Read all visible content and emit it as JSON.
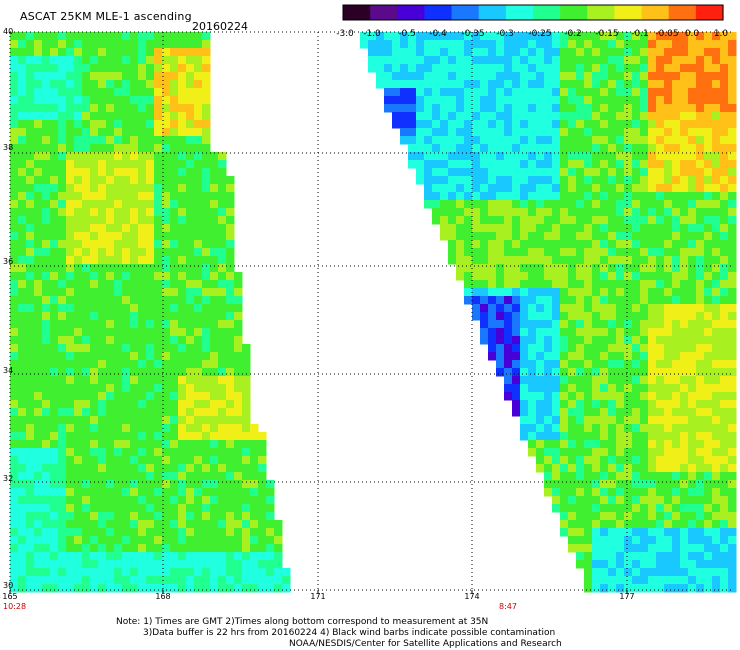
{
  "header": {
    "title": "ASCAT 25KM MLE-1 ascending",
    "date": "20160224"
  },
  "colorbar": {
    "labels": [
      "-3.0",
      "-1.0",
      "-0.5",
      "-0.4",
      "-0.35",
      "-0.3",
      "-0.25",
      "-0.2",
      "-0.15",
      "-0.1",
      "-0.05",
      "0.0",
      "1.0"
    ],
    "colors": [
      "#2a0024",
      "#5a0a8a",
      "#4800d8",
      "#1030ff",
      "#1a78ff",
      "#18c8ff",
      "#20ffe0",
      "#20ff90",
      "#40f030",
      "#a8f020",
      "#f0f018",
      "#ffc018",
      "#ff7010",
      "#ff2010"
    ]
  },
  "map": {
    "y_axis_labels": [
      "40",
      "38",
      "36",
      "34",
      "32",
      "30"
    ],
    "x_axis_labels": [
      "165",
      "168",
      "171",
      "174",
      "177"
    ],
    "pass_times": [
      "10:28",
      "8:47"
    ]
  },
  "notes": [
    "Note: 1) Times are GMT 2)Times along bottom correspond to measurement at 35N",
    "3)Data buffer is 22 hrs from 20160224 4) Black wind barbs indicate possible contamination",
    "NOAA/NESDIS/Center for Satellite Applications and Research"
  ]
}
